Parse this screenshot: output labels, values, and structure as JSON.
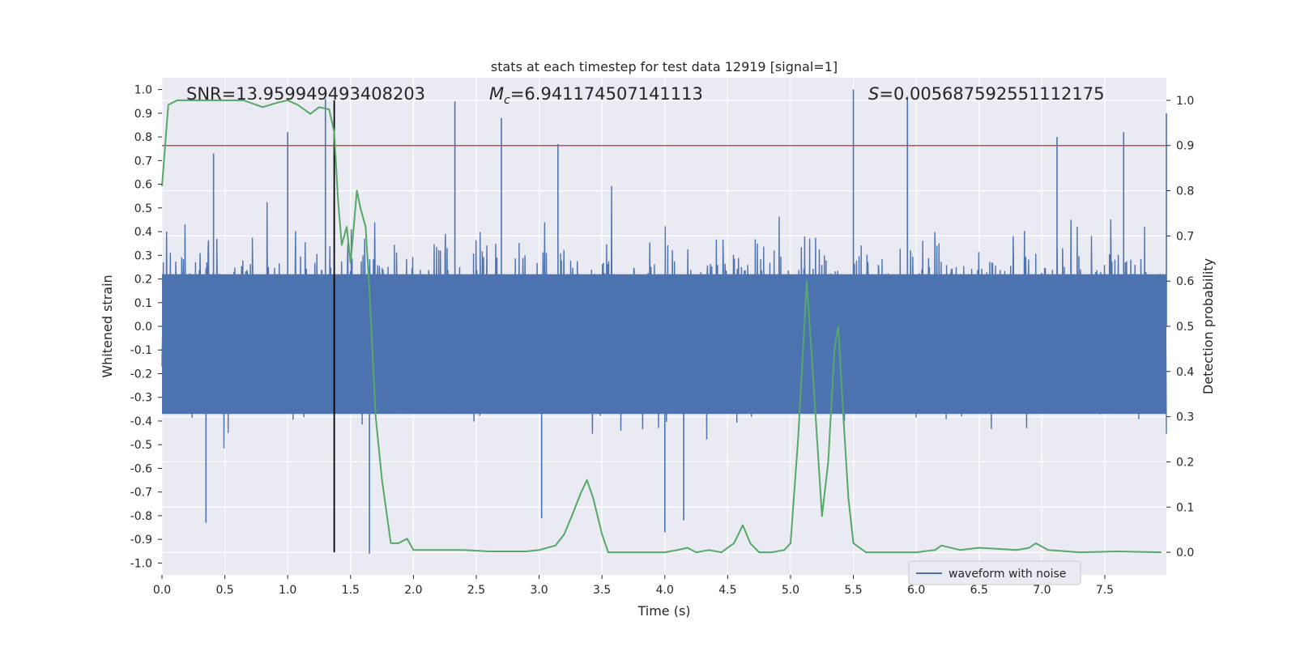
{
  "chart_data": {
    "type": "line",
    "title": "stats at each timestep for test data 12919 [signal=1]",
    "xlabel": "Time (s)",
    "ylabel": "Whitened strain",
    "y2label": "Detection probability",
    "xlim": [
      0.0,
      7.99
    ],
    "ylim": [
      -1.05,
      1.05
    ],
    "y2lim": [
      -0.05,
      1.05
    ],
    "x_ticks": [
      "0.0",
      "0.5",
      "1.0",
      "1.5",
      "2.0",
      "2.5",
      "3.0",
      "3.5",
      "4.0",
      "4.5",
      "5.0",
      "5.5",
      "6.0",
      "6.5",
      "7.0",
      "7.5"
    ],
    "y_ticks": [
      "1.0",
      "0.9",
      "0.8",
      "0.7",
      "0.6",
      "0.5",
      "0.4",
      "0.3",
      "0.2",
      "0.1",
      "0.0",
      "-0.1",
      "-0.2",
      "-0.3",
      "-0.4",
      "-0.5",
      "-0.6",
      "-0.7",
      "-0.8",
      "-0.9",
      "-1.0"
    ],
    "y2_ticks": [
      "1.0",
      "0.9",
      "0.8",
      "0.7",
      "0.6",
      "0.5",
      "0.4",
      "0.3",
      "0.2",
      "0.1",
      "0.0"
    ],
    "grid": true,
    "annotations": {
      "snr": "SNR=13.959949493408203",
      "mc_symbol": "M",
      "mc_sub": "c",
      "mc_value": "=6.941174507141113",
      "s_symbol": "S",
      "s_value": "=0.005687592551112175"
    },
    "threshold": {
      "y2": 0.9,
      "color": "#c44e52"
    },
    "marker_line": {
      "x": 1.37,
      "y2_top": 1.0,
      "y2_bottom": 0.0,
      "color": "#000000"
    },
    "series": [
      {
        "name": "waveform with noise",
        "color": "#4c72b0",
        "description_range": [
          -0.96,
          1.0
        ],
        "notable_spikes": [
          [
            0.35,
            -0.83
          ],
          [
            0.41,
            0.73
          ],
          [
            1.0,
            0.82
          ],
          [
            1.3,
            0.96
          ],
          [
            1.65,
            -0.96
          ],
          [
            2.33,
            0.95
          ],
          [
            2.7,
            0.88
          ],
          [
            3.02,
            -0.81
          ],
          [
            3.15,
            0.77
          ],
          [
            4.0,
            -0.87
          ],
          [
            4.15,
            -0.82
          ],
          [
            5.5,
            1.0
          ],
          [
            5.93,
            0.97
          ],
          [
            7.12,
            0.8
          ],
          [
            7.65,
            0.82
          ],
          [
            7.99,
            0.9
          ]
        ]
      },
      {
        "color": "#55a868",
        "axis": "right",
        "x": [
          0.0,
          0.05,
          0.12,
          0.3,
          0.5,
          0.65,
          0.8,
          0.92,
          1.0,
          1.08,
          1.18,
          1.25,
          1.33,
          1.37,
          1.4,
          1.43,
          1.47,
          1.5,
          1.55,
          1.58,
          1.62,
          1.65,
          1.7,
          1.75,
          1.82,
          1.88,
          1.95,
          2.0,
          2.2,
          2.4,
          2.6,
          2.8,
          2.9,
          3.0,
          3.13,
          3.2,
          3.26,
          3.33,
          3.38,
          3.43,
          3.5,
          3.55,
          3.6,
          3.8,
          4.0,
          4.1,
          4.18,
          4.25,
          4.35,
          4.45,
          4.55,
          4.62,
          4.68,
          4.75,
          4.85,
          4.95,
          5.0,
          5.06,
          5.13,
          5.2,
          5.25,
          5.3,
          5.35,
          5.38,
          5.42,
          5.46,
          5.5,
          5.6,
          5.8,
          6.0,
          6.15,
          6.2,
          6.35,
          6.5,
          6.8,
          6.9,
          6.95,
          7.05,
          7.3,
          7.6,
          7.95
        ],
        "y": [
          0.81,
          0.99,
          1.0,
          1.0,
          1.0,
          1.0,
          0.985,
          0.995,
          1.0,
          0.99,
          0.97,
          0.985,
          0.98,
          0.93,
          0.78,
          0.68,
          0.72,
          0.64,
          0.8,
          0.76,
          0.72,
          0.58,
          0.3,
          0.16,
          0.02,
          0.02,
          0.03,
          0.005,
          0.005,
          0.005,
          0.002,
          0.002,
          0.002,
          0.005,
          0.015,
          0.04,
          0.08,
          0.13,
          0.16,
          0.12,
          0.04,
          0.0,
          0.0,
          0.0,
          0.0,
          0.005,
          0.01,
          0.0,
          0.005,
          0.0,
          0.02,
          0.06,
          0.02,
          0.0,
          0.0,
          0.005,
          0.02,
          0.25,
          0.6,
          0.3,
          0.08,
          0.2,
          0.45,
          0.5,
          0.3,
          0.12,
          0.02,
          0.0,
          0.0,
          0.0,
          0.005,
          0.015,
          0.005,
          0.01,
          0.005,
          0.01,
          0.02,
          0.005,
          0.0,
          0.002,
          0.0
        ]
      }
    ],
    "legend": {
      "position": "lower-right",
      "entries": [
        "waveform with noise"
      ]
    }
  }
}
